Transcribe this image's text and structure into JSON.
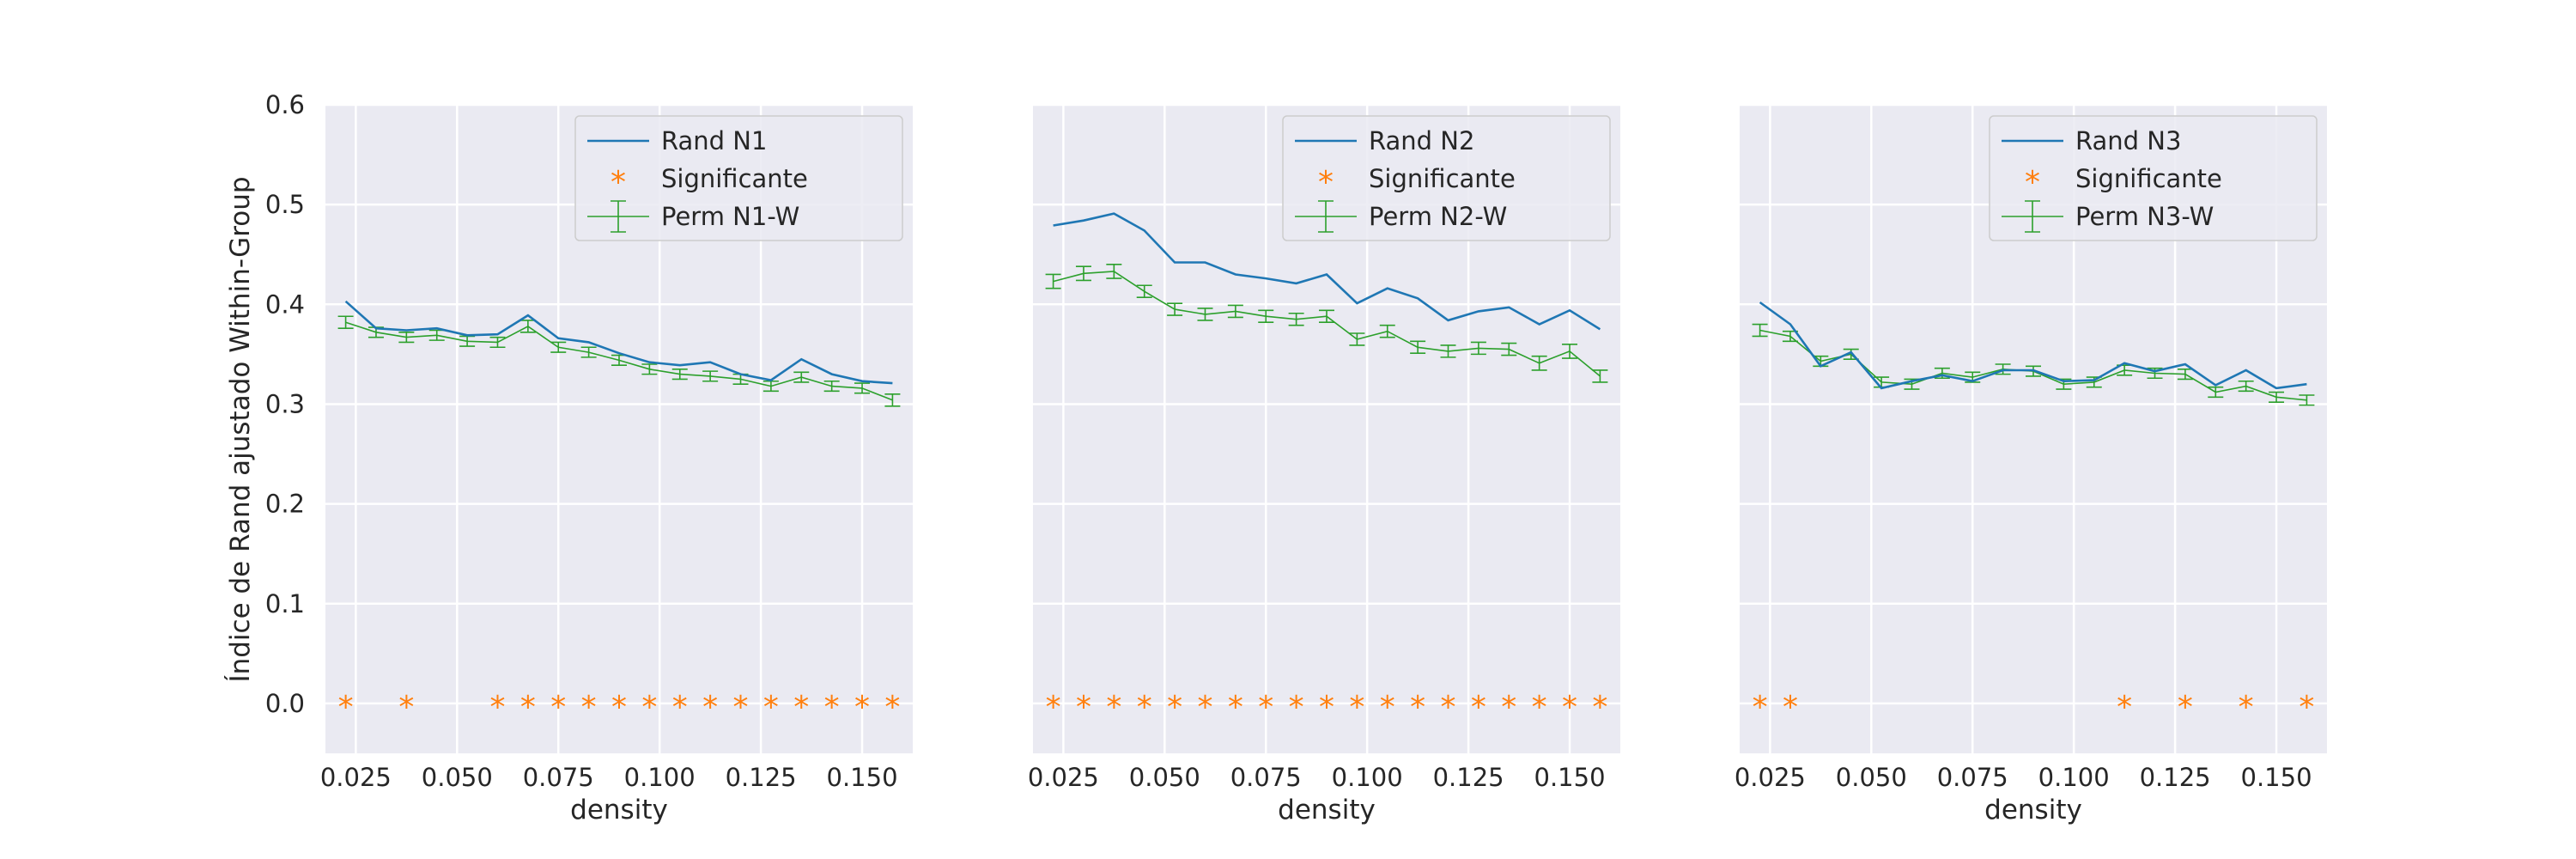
{
  "figure": {
    "ylabel": "Índice de Rand ajustado Within-Group",
    "colors": {
      "background": "#eaeaf2",
      "grid": "#ffffff",
      "rand": "#1f77b4",
      "significant": "#ff7f0e",
      "perm": "#2ca02c"
    }
  },
  "chart_data": [
    {
      "type": "line",
      "xlabel": "density",
      "ylabel": "Índice de Rand ajustado Within-Group",
      "xlim": [
        0.0175,
        0.1625
      ],
      "ylim": [
        -0.05,
        0.6
      ],
      "xticks": [
        "0.025",
        "0.050",
        "0.075",
        "0.100",
        "0.125",
        "0.150"
      ],
      "yticks": [
        "0.0",
        "0.1",
        "0.2",
        "0.3",
        "0.4",
        "0.5",
        "0.6"
      ],
      "grid": true,
      "legend_position": "top-right",
      "x": [
        0.0225,
        0.03,
        0.0375,
        0.045,
        0.0525,
        0.06,
        0.0675,
        0.075,
        0.0825,
        0.09,
        0.0975,
        0.105,
        0.1125,
        0.12,
        0.1275,
        0.135,
        0.1425,
        0.15,
        0.1575
      ],
      "series": [
        {
          "name": "Rand N1",
          "kind": "line",
          "values": [
            0.403,
            0.376,
            0.374,
            0.376,
            0.369,
            0.37,
            0.389,
            0.366,
            0.362,
            0.351,
            0.342,
            0.339,
            0.342,
            0.33,
            0.324,
            0.345,
            0.33,
            0.323,
            0.321
          ]
        },
        {
          "name": "Significante",
          "kind": "marker",
          "x": [
            0.0225,
            0.0375,
            0.06,
            0.0675,
            0.075,
            0.0825,
            0.09,
            0.0975,
            0.105,
            0.1125,
            0.12,
            0.1275,
            0.135,
            0.1425,
            0.15,
            0.1575
          ],
          "values": [
            0,
            0,
            0,
            0,
            0,
            0,
            0,
            0,
            0,
            0,
            0,
            0,
            0,
            0,
            0,
            0
          ]
        },
        {
          "name": "Perm N1-W",
          "kind": "errorbar",
          "values": [
            0.382,
            0.372,
            0.367,
            0.369,
            0.363,
            0.362,
            0.378,
            0.357,
            0.352,
            0.344,
            0.335,
            0.33,
            0.328,
            0.325,
            0.318,
            0.327,
            0.318,
            0.316,
            0.304
          ],
          "errors": [
            0.006,
            0.005,
            0.005,
            0.005,
            0.005,
            0.005,
            0.006,
            0.005,
            0.005,
            0.005,
            0.005,
            0.005,
            0.005,
            0.005,
            0.005,
            0.005,
            0.005,
            0.005,
            0.006
          ]
        }
      ]
    },
    {
      "type": "line",
      "xlabel": "density",
      "xlim": [
        0.0175,
        0.1625
      ],
      "ylim": [
        -0.05,
        0.6
      ],
      "xticks": [
        "0.025",
        "0.050",
        "0.075",
        "0.100",
        "0.125",
        "0.150"
      ],
      "grid": true,
      "legend_position": "top-right",
      "x": [
        0.0225,
        0.03,
        0.0375,
        0.045,
        0.0525,
        0.06,
        0.0675,
        0.075,
        0.0825,
        0.09,
        0.0975,
        0.105,
        0.1125,
        0.12,
        0.1275,
        0.135,
        0.1425,
        0.15,
        0.1575
      ],
      "series": [
        {
          "name": "Rand N2",
          "kind": "line",
          "values": [
            0.479,
            0.484,
            0.491,
            0.474,
            0.442,
            0.442,
            0.43,
            0.426,
            0.421,
            0.43,
            0.401,
            0.416,
            0.406,
            0.384,
            0.393,
            0.397,
            0.38,
            0.394,
            0.375
          ]
        },
        {
          "name": "Significante",
          "kind": "marker",
          "x": [
            0.0225,
            0.03,
            0.0375,
            0.045,
            0.0525,
            0.06,
            0.0675,
            0.075,
            0.0825,
            0.09,
            0.0975,
            0.105,
            0.1125,
            0.12,
            0.1275,
            0.135,
            0.1425,
            0.15,
            0.1575
          ],
          "values": [
            0,
            0,
            0,
            0,
            0,
            0,
            0,
            0,
            0,
            0,
            0,
            0,
            0,
            0,
            0,
            0,
            0,
            0,
            0
          ]
        },
        {
          "name": "Perm N2-W",
          "kind": "errorbar",
          "values": [
            0.423,
            0.431,
            0.433,
            0.413,
            0.395,
            0.39,
            0.393,
            0.388,
            0.385,
            0.388,
            0.365,
            0.373,
            0.357,
            0.353,
            0.356,
            0.355,
            0.341,
            0.353,
            0.328
          ],
          "errors": [
            0.007,
            0.007,
            0.007,
            0.006,
            0.006,
            0.006,
            0.006,
            0.006,
            0.006,
            0.006,
            0.006,
            0.006,
            0.006,
            0.006,
            0.006,
            0.006,
            0.007,
            0.007,
            0.006
          ]
        }
      ]
    },
    {
      "type": "line",
      "xlabel": "density",
      "xlim": [
        0.0175,
        0.1625
      ],
      "ylim": [
        -0.05,
        0.6
      ],
      "xticks": [
        "0.025",
        "0.050",
        "0.075",
        "0.100",
        "0.125",
        "0.150"
      ],
      "grid": true,
      "legend_position": "top-right",
      "x": [
        0.0225,
        0.03,
        0.0375,
        0.045,
        0.0525,
        0.06,
        0.0675,
        0.075,
        0.0825,
        0.09,
        0.0975,
        0.105,
        0.1125,
        0.12,
        0.1275,
        0.135,
        0.1425,
        0.15,
        0.1575
      ],
      "series": [
        {
          "name": "Rand N3",
          "kind": "line",
          "values": [
            0.402,
            0.38,
            0.338,
            0.352,
            0.316,
            0.323,
            0.329,
            0.323,
            0.334,
            0.334,
            0.323,
            0.324,
            0.341,
            0.333,
            0.34,
            0.319,
            0.334,
            0.316,
            0.32
          ]
        },
        {
          "name": "Significante",
          "kind": "marker",
          "x": [
            0.0225,
            0.03,
            0.1125,
            0.1275,
            0.1425,
            0.1575
          ],
          "values": [
            0,
            0,
            0,
            0,
            0,
            0
          ]
        },
        {
          "name": "Perm N3-W",
          "kind": "errorbar",
          "values": [
            0.374,
            0.368,
            0.343,
            0.35,
            0.322,
            0.32,
            0.331,
            0.327,
            0.335,
            0.333,
            0.32,
            0.322,
            0.334,
            0.331,
            0.33,
            0.312,
            0.318,
            0.307,
            0.304
          ],
          "errors": [
            0.006,
            0.005,
            0.005,
            0.005,
            0.005,
            0.005,
            0.005,
            0.005,
            0.005,
            0.005,
            0.005,
            0.005,
            0.005,
            0.005,
            0.005,
            0.005,
            0.005,
            0.005,
            0.005
          ]
        }
      ]
    }
  ]
}
